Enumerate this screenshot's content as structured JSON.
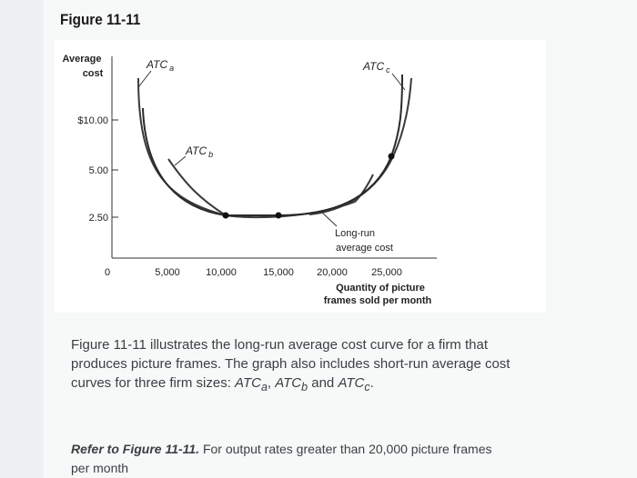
{
  "figure_title": "Figure 11-11",
  "chart_data": {
    "type": "line",
    "title": "",
    "ylabel": "Average\ncost",
    "xlabel": "Quantity of picture\nframes sold per month",
    "y_tick_labels": [
      "$10.00",
      "5.00",
      "2.50"
    ],
    "x_tick_labels": [
      "0",
      "5,000",
      "10,000",
      "15,000",
      "20,000",
      "25,000"
    ],
    "series": [
      {
        "name": "ATCa",
        "label_main": "ATC",
        "label_sub": "a"
      },
      {
        "name": "ATCb",
        "label_main": "ATC",
        "label_sub": "b"
      },
      {
        "name": "ATCc",
        "label_main": "ATC",
        "label_sub": "c"
      },
      {
        "name": "Long-run average cost",
        "label_line1": "Long-run",
        "label_line2": "average cost"
      }
    ],
    "grid": false,
    "legend": "none"
  },
  "text": {
    "line1": "Figure 11-11 illustrates the long-run average cost curve for a firm that",
    "line2": "produces picture frames. The graph also includes short-run average cost",
    "line3_prefix": "curves for three firm sizes: ",
    "atc_main": "ATC",
    "sub_a": "a",
    "sub_b": "b",
    "sub_c": "c",
    "sep1": ", ",
    "sep2": " and ",
    "end": ".",
    "question_bold": "Refer to Figure 11-11.",
    "question_rest": " For output rates greater than 20,000 picture frames",
    "question_line2": "per month"
  }
}
